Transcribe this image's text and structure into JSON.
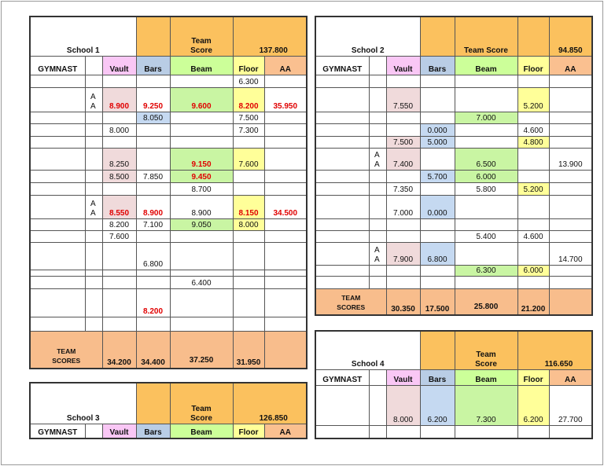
{
  "schools": [
    {
      "title": "School 1",
      "team_score_label": "Team Score",
      "team_score": "137.800",
      "columns": [
        "GYMNAST",
        "Vault",
        "Bars",
        "Beam",
        "Floor",
        "AA"
      ],
      "rows": [
        [
          null,
          null,
          null,
          null,
          null,
          "6.300",
          null
        ],
        [
          null,
          "A A",
          {
            "text": "8.900",
            "fill": "pink",
            "red": true
          },
          {
            "text": "9.250",
            "red": true
          },
          {
            "text": "9.600",
            "fill": "green",
            "red": true
          },
          {
            "text": "8.200",
            "fill": "yellow",
            "red": true
          },
          {
            "text": "35.950",
            "red": true
          }
        ],
        [
          null,
          null,
          null,
          {
            "text": "8.050",
            "fill": "blue"
          },
          null,
          "7.500",
          null
        ],
        [
          null,
          null,
          "8.000",
          null,
          null,
          "7.300",
          null
        ],
        [
          null,
          null,
          null,
          null,
          null,
          null,
          null
        ],
        [
          null,
          null,
          {
            "text": "8.250",
            "fill": "pink"
          },
          null,
          {
            "text": "9.150",
            "fill": "green",
            "red": true
          },
          {
            "text": "7.600",
            "fill": "yellow"
          },
          null
        ],
        [
          null,
          null,
          {
            "text": "8.500",
            "fill": "pink"
          },
          "7.850",
          {
            "text": "9.450",
            "fill": "green",
            "red": true
          },
          null,
          null
        ],
        [
          null,
          null,
          null,
          null,
          "8.700",
          null,
          null
        ],
        [
          null,
          "A A",
          {
            "text": "8.550",
            "fill": "pink",
            "red": true
          },
          {
            "text": "8.900",
            "red": true
          },
          "8.900",
          {
            "text": "8.150",
            "fill": "yellow",
            "red": true
          },
          {
            "text": "34.500",
            "red": true
          }
        ],
        [
          null,
          null,
          "8.200",
          "7.100",
          {
            "text": "9.050",
            "fill": "green"
          },
          {
            "text": "8.000",
            "fill": "yellow"
          },
          null
        ],
        [
          null,
          null,
          "7.600",
          null,
          null,
          null,
          null
        ],
        [
          null,
          null,
          null,
          "6.800",
          null,
          null,
          null
        ],
        [
          null,
          null,
          null,
          null,
          null,
          null,
          null
        ],
        [
          null,
          null,
          null,
          null,
          "6.400",
          null,
          null
        ],
        [
          null,
          null,
          null,
          {
            "text": "8.200",
            "red": true
          },
          null,
          null,
          null
        ],
        [
          null,
          null,
          null,
          null,
          null,
          null,
          null
        ]
      ],
      "team_scores": {
        "label": "TEAM SCORES",
        "values": [
          "34.200",
          "34.400",
          "37.250",
          "31.950",
          null
        ]
      }
    },
    {
      "title": "School 2",
      "team_score_label": "Team Score",
      "team_score": "94.850",
      "columns": [
        "GYMNAST",
        "Vault",
        "Bars",
        "Beam",
        "Floor",
        "AA"
      ],
      "rows": [
        [
          null,
          null,
          null,
          null,
          null,
          null,
          null
        ],
        [
          null,
          null,
          {
            "text": "7.550",
            "fill": "pink"
          },
          null,
          null,
          {
            "text": "5.200",
            "fill": "yellow"
          },
          null
        ],
        [
          null,
          null,
          null,
          null,
          {
            "text": "7.000",
            "fill": "green"
          },
          null,
          null
        ],
        [
          null,
          null,
          null,
          {
            "text": "0.000",
            "fill": "blue"
          },
          null,
          "4.600",
          null
        ],
        [
          null,
          null,
          {
            "text": "7.500",
            "fill": "pink"
          },
          {
            "text": "5.000",
            "fill": "blue"
          },
          null,
          {
            "text": "4.800",
            "fill": "yellow"
          },
          null
        ],
        [
          null,
          "A A",
          {
            "text": "7.400",
            "fill": "pink"
          },
          null,
          {
            "text": "6.500",
            "fill": "green"
          },
          null,
          "13.900"
        ],
        [
          null,
          null,
          null,
          {
            "text": "5.700",
            "fill": "blue"
          },
          {
            "text": "6.000",
            "fill": "green"
          },
          null,
          null
        ],
        [
          null,
          null,
          "7.350",
          null,
          "5.800",
          {
            "text": "5.200",
            "fill": "yellow"
          },
          null
        ],
        [
          null,
          null,
          "7.000",
          {
            "text": "0.000",
            "fill": "blue"
          },
          null,
          null,
          null
        ],
        [
          null,
          null,
          null,
          null,
          null,
          null,
          null
        ],
        [
          null,
          null,
          null,
          null,
          "5.400",
          "4.600",
          null
        ],
        [
          null,
          "A A",
          {
            "text": "7.900",
            "fill": "pink"
          },
          {
            "text": "6.800",
            "fill": "blue"
          },
          null,
          null,
          "14.700"
        ],
        [
          null,
          null,
          null,
          null,
          {
            "text": "6.300",
            "fill": "green"
          },
          {
            "text": "6.000",
            "fill": "yellow"
          },
          null
        ],
        [
          null,
          null,
          null,
          null,
          null,
          null,
          null
        ]
      ],
      "team_scores": {
        "label": "TEAM SCORES",
        "values": [
          "30.350",
          "17.500",
          "25.800",
          "21.200",
          null
        ]
      }
    },
    {
      "title": "School 3",
      "team_score_label": "Team Score",
      "team_score": "126.850",
      "columns": [
        "GYMNAST",
        "Vault",
        "Bars",
        "Beam",
        "Floor",
        "AA"
      ],
      "rows": []
    },
    {
      "title": "School 4",
      "team_score_label": "Team Score",
      "team_score": "116.650",
      "columns": [
        "GYMNAST",
        "Vault",
        "Bars",
        "Beam",
        "Floor",
        "AA"
      ],
      "rows": [
        [
          null,
          null,
          {
            "text": "8.000",
            "fill": "pink"
          },
          {
            "text": "6.200",
            "fill": "blue"
          },
          {
            "text": "7.300",
            "fill": "green"
          },
          {
            "text": "6.200",
            "fill": "yellow"
          },
          "27.700"
        ],
        [
          null,
          null,
          null,
          null,
          null,
          null,
          null
        ]
      ]
    }
  ]
}
